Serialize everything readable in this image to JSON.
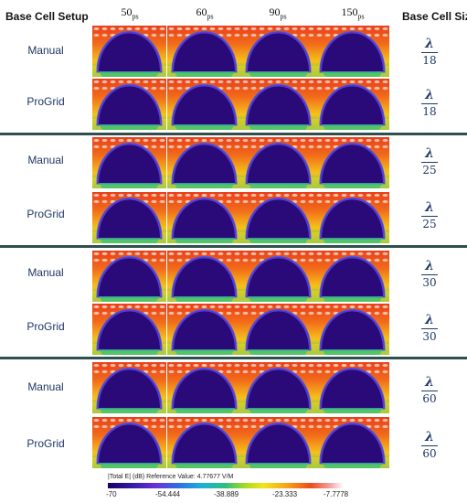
{
  "header": {
    "setup_title": "Base Cell Setup",
    "size_title": "Base Cell Size",
    "times": [
      {
        "value": "50",
        "unit": "ps"
      },
      {
        "value": "60",
        "unit": "ps"
      },
      {
        "value": "90",
        "unit": "ps"
      },
      {
        "value": "150",
        "unit": "ps"
      }
    ]
  },
  "groups": [
    {
      "rows": [
        "Manual",
        "ProGrid"
      ],
      "numerator": "λ",
      "denominator": "18"
    },
    {
      "rows": [
        "Manual",
        "ProGrid"
      ],
      "numerator": "λ",
      "denominator": "25"
    },
    {
      "rows": [
        "Manual",
        "ProGrid"
      ],
      "numerator": "λ",
      "denominator": "30"
    },
    {
      "rows": [
        "Manual",
        "ProGrid"
      ],
      "numerator": "λ",
      "denominator": "60"
    }
  ],
  "legend": {
    "title": "|Total E| (dB) Reference Value: 4.77677 V/M",
    "ticks": [
      "-70",
      "-54.444",
      "-38.889",
      "-23.333",
      "-7.7778"
    ]
  }
}
